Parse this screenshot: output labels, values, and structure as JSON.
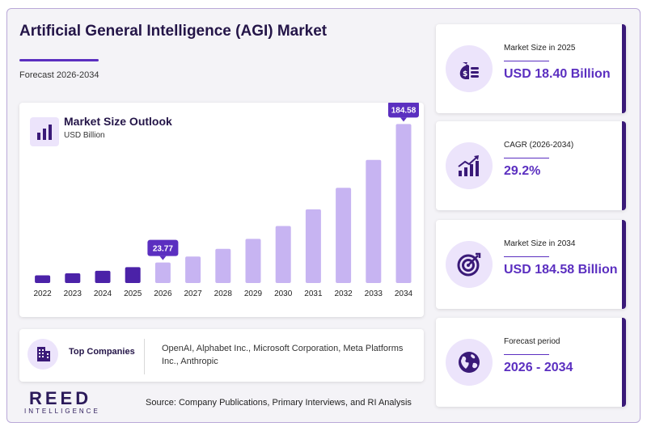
{
  "header": {
    "title": "Artificial General Intelligence (AGI) Market",
    "subtitle": "Forecast 2026-2034"
  },
  "chart_card": {
    "title": "Market Size Outlook",
    "unit": "USD Billion",
    "icon": "bar-chart-icon"
  },
  "chart_data": {
    "type": "bar",
    "categories": [
      "2022",
      "2023",
      "2024",
      "2025",
      "2026",
      "2027",
      "2028",
      "2029",
      "2030",
      "2031",
      "2032",
      "2033",
      "2034"
    ],
    "values": [
      8.9,
      11.3,
      14.2,
      18.4,
      23.77,
      30.7,
      39.7,
      51.3,
      66.2,
      85.6,
      110.6,
      142.9,
      184.58
    ],
    "title": "Market Size Outlook",
    "ylabel": "USD Billion",
    "ylim": [
      0,
      200
    ],
    "grid": false,
    "highlight_labels": [
      {
        "category": "2026",
        "label": "23.77"
      },
      {
        "category": "2034",
        "label": "184.58"
      }
    ],
    "colors": {
      "historic": "#4b22a8",
      "forecast": "#c7b4f2",
      "callout": "#5b2fc0"
    },
    "historic_count": 4
  },
  "companies": {
    "label": "Top Companies",
    "list": "OpenAI, Alphabet Inc., Microsoft Corporation, Meta Platforms Inc., Anthropic",
    "icon": "building-icon"
  },
  "stats": [
    {
      "label": "Market Size in 2025",
      "value": "USD 18.40 Billion",
      "icon": "money-bag-icon"
    },
    {
      "label": "CAGR (2026-2034)",
      "value": "29.2%",
      "icon": "growth-chart-icon"
    },
    {
      "label": "Market Size in 2034",
      "value": "USD 184.58 Billion",
      "icon": "target-icon"
    },
    {
      "label": "Forecast period",
      "value": "2026 - 2034",
      "icon": "globe-icon"
    }
  ],
  "footer": {
    "logo_main": "REED",
    "logo_sub": "INTELLIGENCE",
    "source": "Source: Company Publications, Primary Interviews, and RI Analysis"
  },
  "colors": {
    "accent": "#5b2fc0",
    "dark": "#241548",
    "icon_bg": "#ece4fb"
  }
}
